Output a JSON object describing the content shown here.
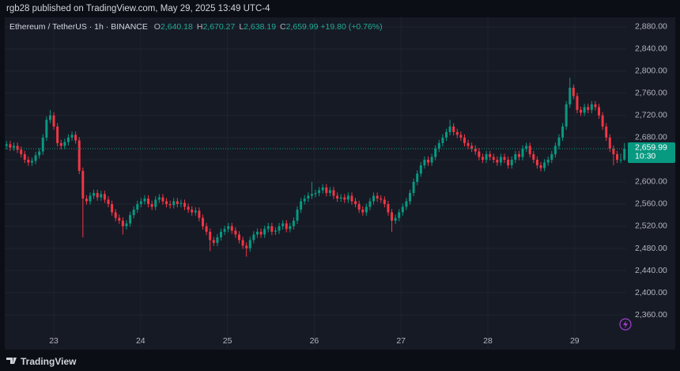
{
  "header": {
    "published": "rgb28 published on TradingView.com, May 29, 2025 13:49 UTC-4",
    "footer": "TradingView"
  },
  "chart_data": {
    "type": "candlestick",
    "title": "Ethereum / TetherUS · 1h · BINANCE",
    "ohlc_legend": [
      {
        "key": "O",
        "label": "2,640.18"
      },
      {
        "key": "H",
        "label": "2,670.27"
      },
      {
        "key": "L",
        "label": "2,638.19"
      },
      {
        "key": "C",
        "label": "2,659.99"
      }
    ],
    "change": "+19.80 (+0.76%)",
    "up_color": "#089981",
    "down_color": "#f23645",
    "last_price": {
      "value": 2659.99,
      "label": "2,659.99"
    },
    "countdown": "10:30",
    "xlim": [
      22.435,
      29.594
    ],
    "xticks": [
      23,
      24,
      25,
      26,
      27,
      28,
      29
    ],
    "ylim": [
      2300,
      2897
    ],
    "yticks": [
      {
        "value": 2360,
        "label": "2,360.00"
      },
      {
        "value": 2400,
        "label": "2,400.00"
      },
      {
        "value": 2440,
        "label": "2,440.00"
      },
      {
        "value": 2480,
        "label": "2,480.00"
      },
      {
        "value": 2520,
        "label": "2,520.00"
      },
      {
        "value": 2560,
        "label": "2,560.00"
      },
      {
        "value": 2600,
        "label": "2,600.00"
      },
      {
        "value": 2640,
        "label": "2,640.00"
      },
      {
        "value": 2680,
        "label": "2,680.00"
      },
      {
        "value": 2720,
        "label": "2,720.00"
      },
      {
        "value": 2760,
        "label": "2,760.00"
      },
      {
        "value": 2800,
        "label": "2,800.00"
      },
      {
        "value": 2840,
        "label": "2,840.00"
      },
      {
        "value": 2880,
        "label": "2,880.00"
      }
    ],
    "grid": true,
    "candles": [
      [
        2665,
        2674,
        2659,
        2668
      ],
      [
        2668,
        2674,
        2656,
        2662
      ],
      [
        2662,
        2671,
        2656,
        2665
      ],
      [
        2665,
        2671,
        2652,
        2658
      ],
      [
        2658,
        2664,
        2644,
        2650
      ],
      [
        2650,
        2656,
        2634,
        2640
      ],
      [
        2640,
        2646,
        2629,
        2635
      ],
      [
        2635,
        2644,
        2629,
        2638
      ],
      [
        2638,
        2654,
        2632,
        2648
      ],
      [
        2648,
        2661,
        2642,
        2655
      ],
      [
        2655,
        2686,
        2649,
        2680
      ],
      [
        2680,
        2718,
        2674,
        2712
      ],
      [
        2712,
        2730,
        2706,
        2720
      ],
      [
        2720,
        2726,
        2694,
        2700
      ],
      [
        2700,
        2706,
        2664,
        2670
      ],
      [
        2670,
        2676,
        2659,
        2665
      ],
      [
        2665,
        2678,
        2659,
        2672
      ],
      [
        2672,
        2686,
        2666,
        2680
      ],
      [
        2680,
        2691,
        2674,
        2685
      ],
      [
        2685,
        2691,
        2669,
        2675
      ],
      [
        2675,
        2681,
        2614,
        2620
      ],
      [
        2620,
        2626,
        2500,
        2570
      ],
      [
        2570,
        2576,
        2559,
        2565
      ],
      [
        2565,
        2581,
        2559,
        2575
      ],
      [
        2575,
        2586,
        2569,
        2580
      ],
      [
        2580,
        2586,
        2566,
        2572
      ],
      [
        2572,
        2584,
        2566,
        2578
      ],
      [
        2578,
        2584,
        2562,
        2568
      ],
      [
        2568,
        2574,
        2554,
        2560
      ],
      [
        2560,
        2566,
        2539,
        2545
      ],
      [
        2545,
        2551,
        2529,
        2535
      ],
      [
        2535,
        2541,
        2524,
        2530
      ],
      [
        2530,
        2536,
        2505,
        2520
      ],
      [
        2520,
        2531,
        2514,
        2525
      ],
      [
        2525,
        2546,
        2519,
        2540
      ],
      [
        2540,
        2556,
        2534,
        2550
      ],
      [
        2550,
        2566,
        2544,
        2560
      ],
      [
        2560,
        2571,
        2554,
        2565
      ],
      [
        2565,
        2576,
        2559,
        2570
      ],
      [
        2570,
        2576,
        2554,
        2560
      ],
      [
        2560,
        2566,
        2549,
        2555
      ],
      [
        2555,
        2574,
        2549,
        2568
      ],
      [
        2568,
        2578,
        2562,
        2572
      ],
      [
        2572,
        2578,
        2559,
        2565
      ],
      [
        2565,
        2571,
        2554,
        2560
      ],
      [
        2560,
        2566,
        2552,
        2558
      ],
      [
        2558,
        2571,
        2552,
        2565
      ],
      [
        2565,
        2571,
        2554,
        2560
      ],
      [
        2560,
        2568,
        2554,
        2562
      ],
      [
        2562,
        2568,
        2549,
        2555
      ],
      [
        2555,
        2561,
        2544,
        2550
      ],
      [
        2550,
        2556,
        2539,
        2545
      ],
      [
        2545,
        2554,
        2539,
        2548
      ],
      [
        2548,
        2554,
        2529,
        2535
      ],
      [
        2535,
        2541,
        2514,
        2520
      ],
      [
        2520,
        2526,
        2504,
        2510
      ],
      [
        2510,
        2516,
        2475,
        2495
      ],
      [
        2495,
        2501,
        2484,
        2490
      ],
      [
        2490,
        2506,
        2484,
        2500
      ],
      [
        2500,
        2516,
        2494,
        2510
      ],
      [
        2510,
        2521,
        2504,
        2515
      ],
      [
        2515,
        2526,
        2509,
        2520
      ],
      [
        2520,
        2526,
        2506,
        2512
      ],
      [
        2512,
        2518,
        2499,
        2505
      ],
      [
        2505,
        2511,
        2489,
        2495
      ],
      [
        2495,
        2501,
        2479,
        2485
      ],
      [
        2485,
        2491,
        2465,
        2480
      ],
      [
        2480,
        2501,
        2474,
        2495
      ],
      [
        2495,
        2511,
        2489,
        2505
      ],
      [
        2505,
        2516,
        2499,
        2510
      ],
      [
        2510,
        2516,
        2499,
        2505
      ],
      [
        2505,
        2521,
        2499,
        2515
      ],
      [
        2515,
        2526,
        2509,
        2520
      ],
      [
        2520,
        2526,
        2504,
        2510
      ],
      [
        2510,
        2518,
        2504,
        2512
      ],
      [
        2512,
        2526,
        2506,
        2520
      ],
      [
        2520,
        2531,
        2514,
        2525
      ],
      [
        2525,
        2531,
        2509,
        2515
      ],
      [
        2515,
        2526,
        2509,
        2520
      ],
      [
        2520,
        2536,
        2514,
        2530
      ],
      [
        2530,
        2556,
        2524,
        2550
      ],
      [
        2550,
        2571,
        2544,
        2565
      ],
      [
        2565,
        2576,
        2559,
        2570
      ],
      [
        2570,
        2581,
        2564,
        2575
      ],
      [
        2575,
        2600,
        2569,
        2578
      ],
      [
        2578,
        2586,
        2572,
        2580
      ],
      [
        2580,
        2591,
        2574,
        2585
      ],
      [
        2585,
        2596,
        2579,
        2590
      ],
      [
        2590,
        2596,
        2574,
        2580
      ],
      [
        2580,
        2591,
        2574,
        2585
      ],
      [
        2585,
        2591,
        2569,
        2575
      ],
      [
        2575,
        2581,
        2564,
        2570
      ],
      [
        2570,
        2578,
        2564,
        2572
      ],
      [
        2572,
        2578,
        2562,
        2568
      ],
      [
        2568,
        2581,
        2562,
        2575
      ],
      [
        2575,
        2581,
        2559,
        2565
      ],
      [
        2565,
        2571,
        2554,
        2560
      ],
      [
        2560,
        2566,
        2544,
        2550
      ],
      [
        2550,
        2556,
        2539,
        2545
      ],
      [
        2545,
        2561,
        2539,
        2555
      ],
      [
        2555,
        2571,
        2549,
        2565
      ],
      [
        2565,
        2581,
        2559,
        2575
      ],
      [
        2575,
        2581,
        2564,
        2570
      ],
      [
        2570,
        2576,
        2562,
        2568
      ],
      [
        2568,
        2574,
        2554,
        2560
      ],
      [
        2560,
        2566,
        2539,
        2545
      ],
      [
        2545,
        2551,
        2510,
        2530
      ],
      [
        2530,
        2541,
        2524,
        2535
      ],
      [
        2535,
        2551,
        2529,
        2545
      ],
      [
        2545,
        2561,
        2539,
        2555
      ],
      [
        2555,
        2571,
        2549,
        2565
      ],
      [
        2565,
        2586,
        2559,
        2580
      ],
      [
        2580,
        2606,
        2574,
        2600
      ],
      [
        2600,
        2621,
        2594,
        2615
      ],
      [
        2615,
        2636,
        2609,
        2630
      ],
      [
        2630,
        2646,
        2624,
        2640
      ],
      [
        2640,
        2646,
        2629,
        2635
      ],
      [
        2635,
        2651,
        2629,
        2645
      ],
      [
        2645,
        2666,
        2639,
        2660
      ],
      [
        2660,
        2676,
        2654,
        2670
      ],
      [
        2670,
        2686,
        2664,
        2680
      ],
      [
        2680,
        2696,
        2674,
        2690
      ],
      [
        2690,
        2712,
        2684,
        2700
      ],
      [
        2700,
        2706,
        2684,
        2690
      ],
      [
        2690,
        2696,
        2679,
        2685
      ],
      [
        2685,
        2691,
        2674,
        2680
      ],
      [
        2680,
        2686,
        2664,
        2670
      ],
      [
        2670,
        2676,
        2659,
        2665
      ],
      [
        2665,
        2671,
        2654,
        2660
      ],
      [
        2660,
        2666,
        2649,
        2655
      ],
      [
        2655,
        2661,
        2639,
        2645
      ],
      [
        2645,
        2651,
        2634,
        2640
      ],
      [
        2640,
        2656,
        2634,
        2650
      ],
      [
        2650,
        2656,
        2639,
        2645
      ],
      [
        2645,
        2651,
        2634,
        2640
      ],
      [
        2640,
        2646,
        2629,
        2635
      ],
      [
        2635,
        2651,
        2629,
        2645
      ],
      [
        2645,
        2651,
        2634,
        2640
      ],
      [
        2640,
        2646,
        2624,
        2630
      ],
      [
        2630,
        2646,
        2624,
        2640
      ],
      [
        2640,
        2656,
        2634,
        2650
      ],
      [
        2650,
        2656,
        2639,
        2645
      ],
      [
        2645,
        2666,
        2639,
        2660
      ],
      [
        2660,
        2671,
        2654,
        2665
      ],
      [
        2665,
        2671,
        2644,
        2650
      ],
      [
        2650,
        2656,
        2634,
        2640
      ],
      [
        2640,
        2646,
        2624,
        2630
      ],
      [
        2630,
        2636,
        2619,
        2625
      ],
      [
        2625,
        2641,
        2619,
        2635
      ],
      [
        2635,
        2646,
        2629,
        2640
      ],
      [
        2640,
        2656,
        2634,
        2650
      ],
      [
        2650,
        2671,
        2644,
        2665
      ],
      [
        2665,
        2686,
        2659,
        2680
      ],
      [
        2680,
        2706,
        2674,
        2700
      ],
      [
        2700,
        2746,
        2694,
        2740
      ],
      [
        2740,
        2788,
        2734,
        2770
      ],
      [
        2770,
        2776,
        2749,
        2755
      ],
      [
        2755,
        2761,
        2724,
        2730
      ],
      [
        2730,
        2736,
        2719,
        2725
      ],
      [
        2725,
        2741,
        2719,
        2735
      ],
      [
        2735,
        2741,
        2724,
        2730
      ],
      [
        2730,
        2746,
        2724,
        2740
      ],
      [
        2740,
        2746,
        2729,
        2735
      ],
      [
        2735,
        2741,
        2714,
        2720
      ],
      [
        2720,
        2726,
        2694,
        2700
      ],
      [
        2700,
        2706,
        2674,
        2680
      ],
      [
        2680,
        2686,
        2654,
        2660
      ],
      [
        2660,
        2666,
        2630,
        2650
      ],
      [
        2650,
        2656,
        2634,
        2640
      ],
      [
        2640,
        2651,
        2634,
        2640.18
      ],
      [
        2640.18,
        2670.27,
        2638.19,
        2659.99
      ]
    ]
  }
}
